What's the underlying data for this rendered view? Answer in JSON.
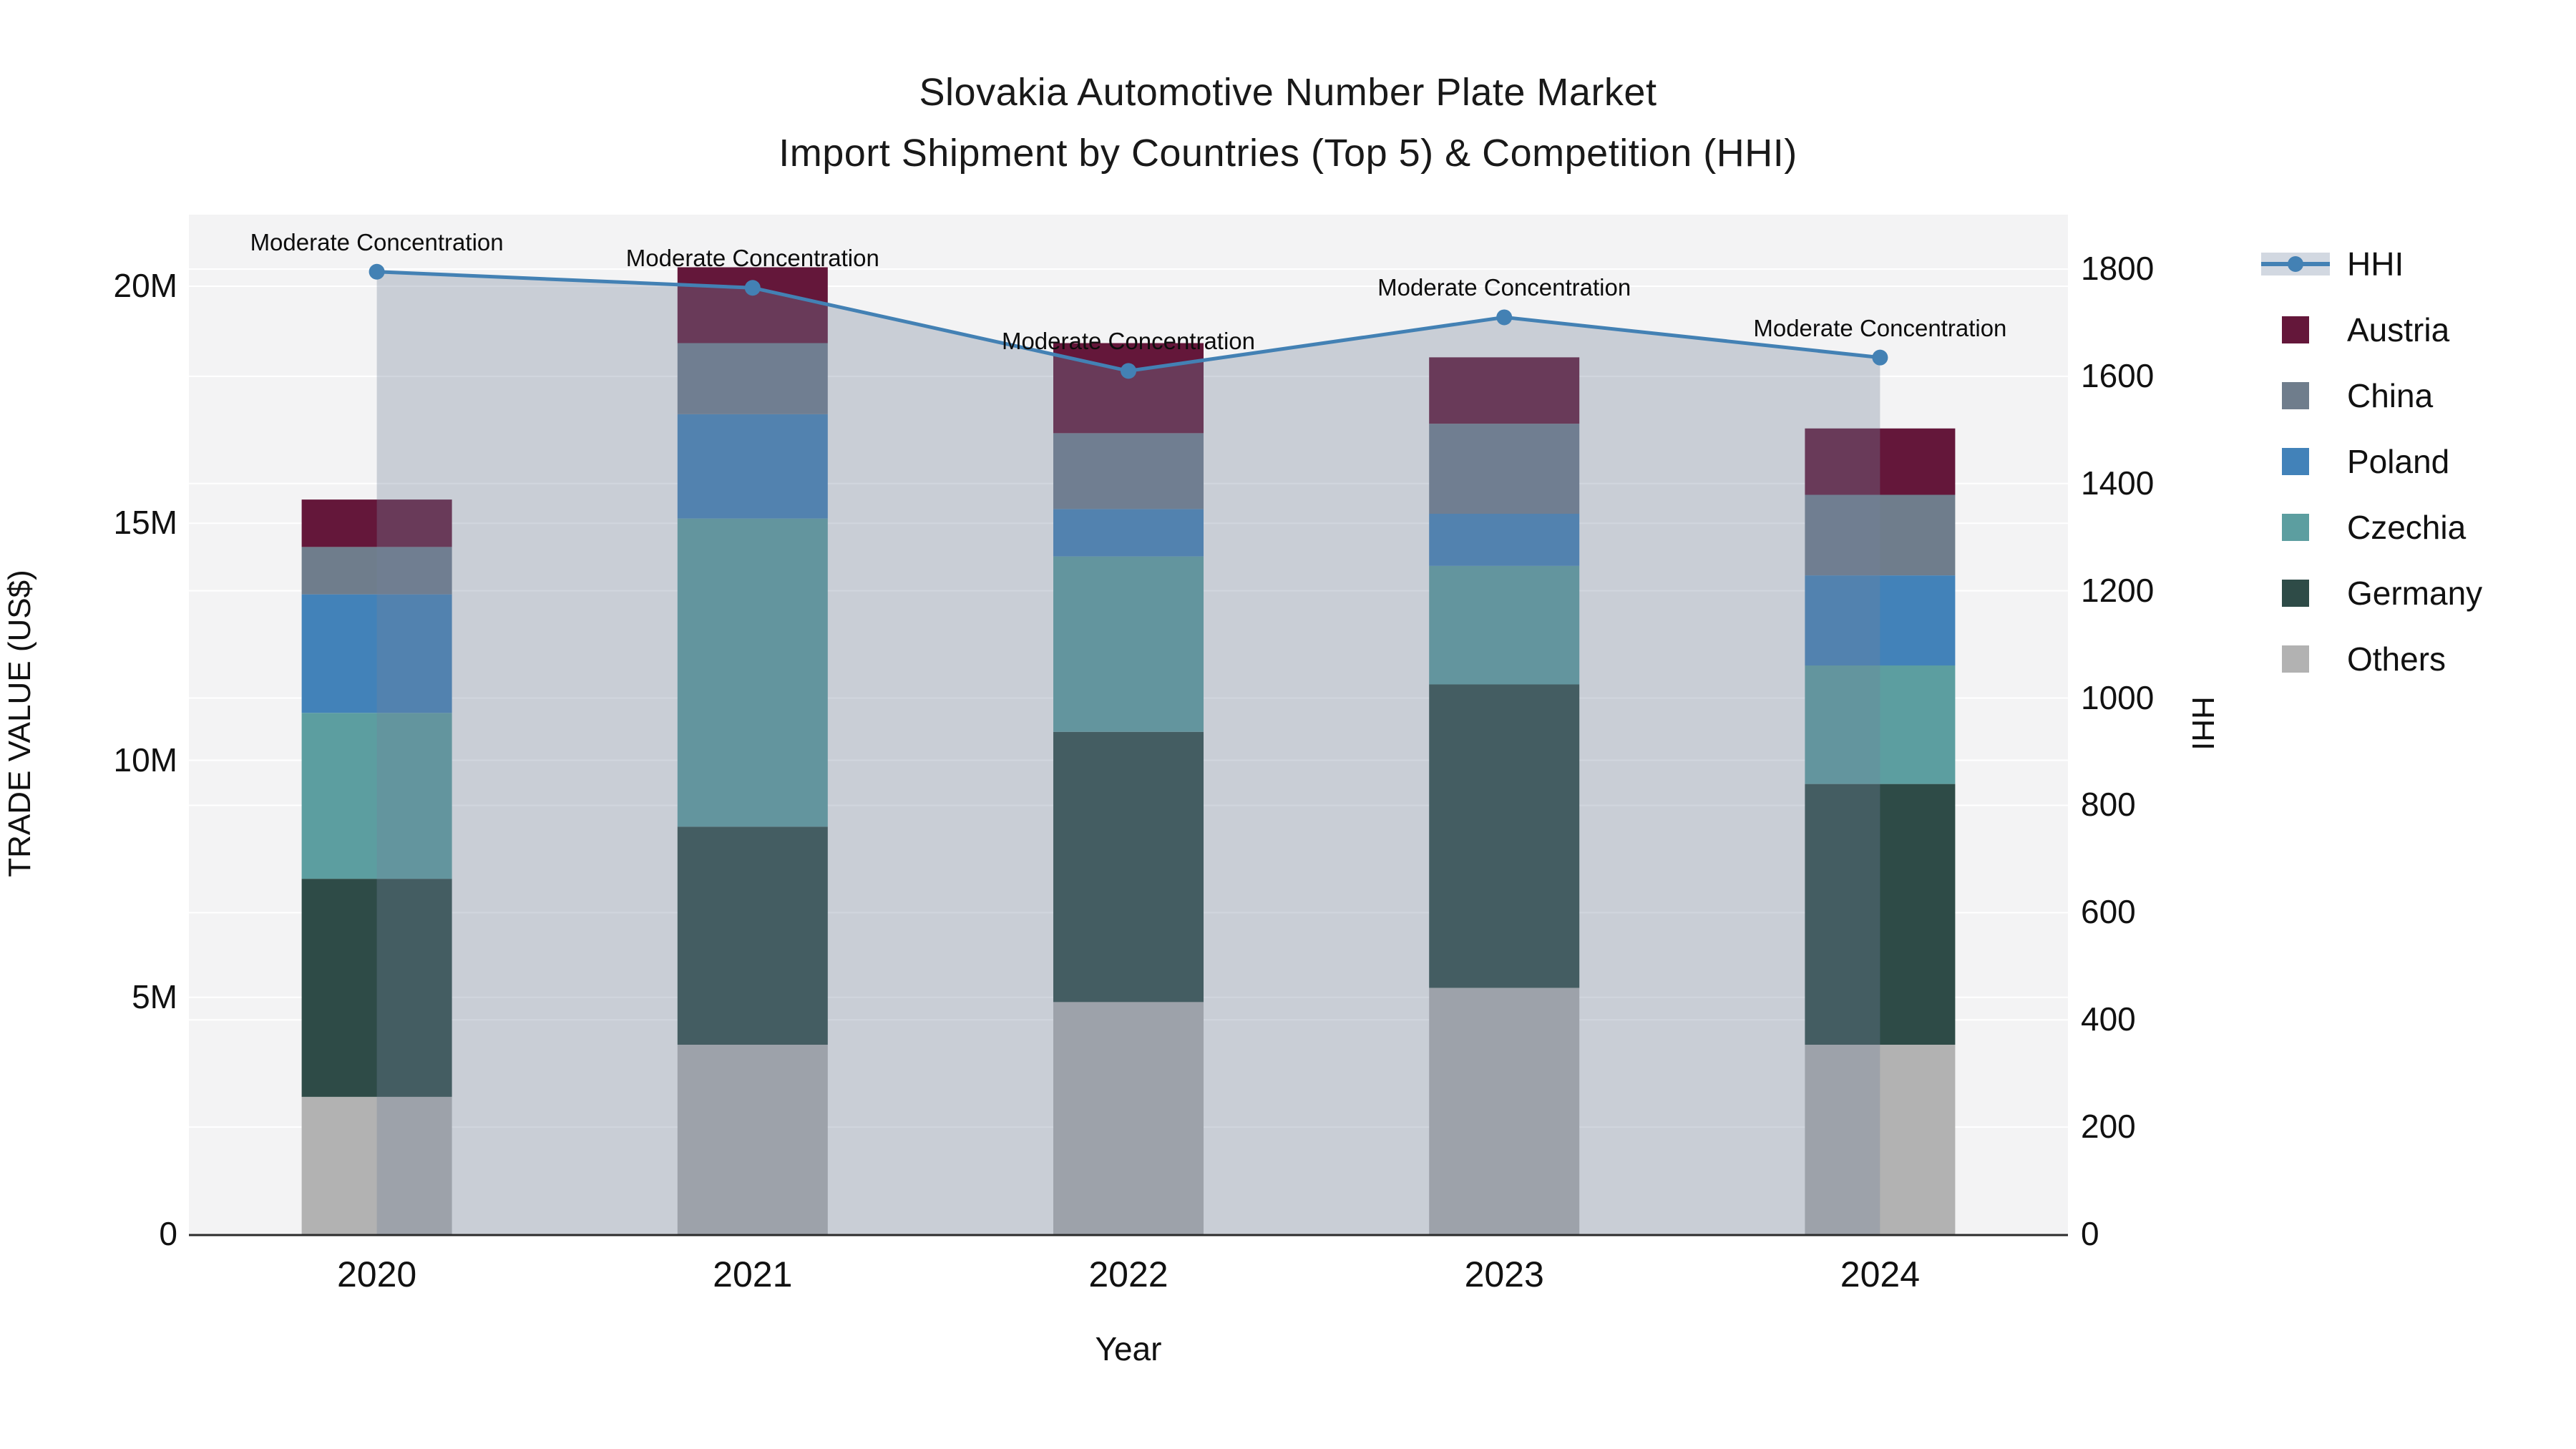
{
  "header": {
    "title_line1": "Slovakia Automotive Number Plate Market",
    "title_line2": "Import Shipment by Countries (Top 5) & Competition (HHI)"
  },
  "axes": {
    "x": {
      "title": "Year",
      "tick_labels": [
        "2020",
        "2021",
        "2022",
        "2023",
        "2024"
      ]
    },
    "y_left": {
      "title": "TRADE VALUE (US$)",
      "tick_labels": [
        "0",
        "5M",
        "10M",
        "15M",
        "20M"
      ],
      "tick_values_musd": [
        0,
        5,
        10,
        15,
        20
      ],
      "range_musd": [
        0,
        21.5
      ]
    },
    "y_right": {
      "title": "HHI",
      "tick_labels": [
        "0",
        "200",
        "400",
        "600",
        "800",
        "1000",
        "1200",
        "1400",
        "1600",
        "1800"
      ],
      "tick_values": [
        0,
        200,
        400,
        600,
        800,
        1000,
        1200,
        1400,
        1600,
        1800
      ],
      "range": [
        0,
        1900
      ]
    }
  },
  "legend": {
    "order": [
      "HHI",
      "Austria",
      "China",
      "Poland",
      "Czechia",
      "Germany",
      "Others"
    ]
  },
  "colors": {
    "plot_background": "#f3f3f4",
    "gridline": "#ffffff",
    "axis_line": "#2b2b2b",
    "hhi_line": "#4381b4",
    "hhi_area_fill": "rgba(116,130,155,0.33)",
    "Austria": "#64173a",
    "China": "#6f7d8c",
    "Poland": "#4282b9",
    "Czechia": "#5c9ea0",
    "Germany": "#2e4b47",
    "Others": "#b2b2b2"
  },
  "chart_data": {
    "type": "bar",
    "stacked": true,
    "title": "Slovakia Automotive Number Plate Market — Import Shipment by Countries (Top 5) & Competition (HHI)",
    "categories": [
      "2020",
      "2021",
      "2022",
      "2023",
      "2024"
    ],
    "stack_order_bottom_to_top": [
      "Others",
      "Germany",
      "Czechia",
      "Poland",
      "China",
      "Austria"
    ],
    "series": [
      {
        "name": "Austria",
        "color": "#64173a",
        "values_musd": [
          1.0,
          1.6,
          1.9,
          1.4,
          1.4
        ]
      },
      {
        "name": "China",
        "color": "#6f7d8c",
        "values_musd": [
          1.0,
          1.5,
          1.6,
          1.9,
          1.7
        ]
      },
      {
        "name": "Poland",
        "color": "#4282b9",
        "values_musd": [
          2.5,
          2.2,
          1.0,
          1.1,
          1.9
        ]
      },
      {
        "name": "Czechia",
        "color": "#5c9ea0",
        "values_musd": [
          3.5,
          6.5,
          3.7,
          2.5,
          2.5
        ]
      },
      {
        "name": "Germany",
        "color": "#2e4b47",
        "values_musd": [
          4.6,
          4.6,
          5.7,
          6.4,
          5.5
        ]
      },
      {
        "name": "Others",
        "color": "#b2b2b2",
        "values_musd": [
          2.9,
          4.0,
          4.9,
          5.2,
          4.0
        ]
      }
    ],
    "totals_musd": [
      15.5,
      20.4,
      18.8,
      18.5,
      17.0
    ],
    "line": {
      "name": "HHI",
      "color": "#4381b4",
      "area_fill": "rgba(116,130,155,0.33)",
      "values": [
        1795,
        1765,
        1610,
        1710,
        1635
      ],
      "axis": "right"
    },
    "xlabel": "Year",
    "ylabel_left": "TRADE VALUE (US$)",
    "ylabel_right": "HHI",
    "ylim_left_musd": [
      0,
      21.5
    ],
    "ylim_right": [
      0,
      1900
    ],
    "grid": true,
    "legend_position": "right",
    "annotations_per_year": [
      "Moderate Concentration",
      "Moderate Concentration",
      "Moderate Concentration",
      "Moderate Concentration",
      "Moderate Concentration"
    ]
  }
}
